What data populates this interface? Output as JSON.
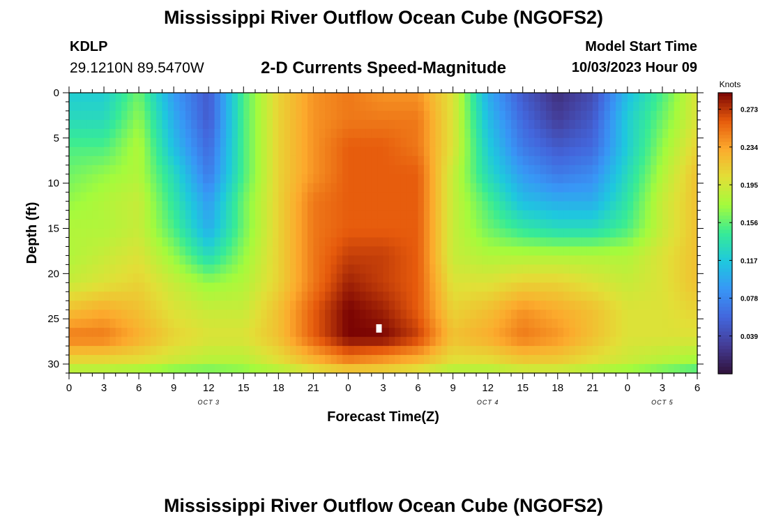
{
  "header": {
    "title": "Mississippi River Outflow Ocean Cube (NGOFS2)",
    "station": "KDLP",
    "coordinates": "29.1210N  89.5470W",
    "subtitle": "2-D Currents Speed-Magnitude",
    "model_start_label": "Model Start Time",
    "model_start_value": "10/03/2023 Hour 09"
  },
  "footer": {
    "title": "Mississippi River Outflow Ocean Cube (NGOFS2)"
  },
  "chart_data": {
    "type": "heatmap",
    "title": "2-D Currents Speed-Magnitude",
    "xlabel": "Forecast Time(Z)",
    "ylabel": "Depth (ft)",
    "x_range_hours": [
      0,
      54
    ],
    "y_range": [
      0,
      31
    ],
    "y_inverted": true,
    "x_tick_labels": [
      "0",
      "3",
      "6",
      "9",
      "12",
      "15",
      "18",
      "21",
      "0",
      "3",
      "6",
      "9",
      "12",
      "15",
      "18",
      "21",
      "0",
      "3",
      "6"
    ],
    "y_ticks": [
      0,
      5,
      10,
      15,
      20,
      25,
      30
    ],
    "date_labels": [
      {
        "label": "OCT 3",
        "hour": 12
      },
      {
        "label": "OCT 4",
        "hour": 36
      },
      {
        "label": "OCT 5",
        "hour": 51
      }
    ],
    "colorbar": {
      "units": "Knots",
      "ticks": [
        0.039,
        0.078,
        0.117,
        0.156,
        0.195,
        0.234,
        0.273
      ],
      "tick_labels": [
        "0.039",
        "0.078",
        "0.117",
        "0.156",
        "0.195",
        "0.234",
        "0.273"
      ],
      "range": [
        0.0,
        0.29
      ],
      "colormap": "turbo"
    },
    "grid": false,
    "speed_grid": {
      "hours": [
        0,
        3,
        6,
        9,
        12,
        15,
        18,
        21,
        24,
        27,
        30,
        33,
        36,
        39,
        42,
        45,
        48,
        51,
        54
      ],
      "depths": [
        0,
        3,
        6,
        9,
        12,
        15,
        18,
        21,
        24,
        27,
        30,
        31
      ],
      "values": [
        [
          0.12,
          0.12,
          0.16,
          0.09,
          0.05,
          0.15,
          0.21,
          0.24,
          0.25,
          0.24,
          0.24,
          0.2,
          0.1,
          0.05,
          0.02,
          0.04,
          0.11,
          0.15,
          0.2
        ],
        [
          0.13,
          0.13,
          0.17,
          0.1,
          0.05,
          0.15,
          0.21,
          0.24,
          0.25,
          0.25,
          0.25,
          0.2,
          0.11,
          0.06,
          0.03,
          0.05,
          0.12,
          0.16,
          0.2
        ],
        [
          0.15,
          0.15,
          0.18,
          0.11,
          0.06,
          0.15,
          0.21,
          0.24,
          0.26,
          0.26,
          0.25,
          0.2,
          0.12,
          0.07,
          0.05,
          0.06,
          0.12,
          0.17,
          0.21
        ],
        [
          0.16,
          0.17,
          0.18,
          0.13,
          0.07,
          0.15,
          0.21,
          0.24,
          0.26,
          0.26,
          0.26,
          0.19,
          0.13,
          0.09,
          0.07,
          0.08,
          0.13,
          0.18,
          0.22
        ],
        [
          0.17,
          0.18,
          0.19,
          0.14,
          0.09,
          0.16,
          0.21,
          0.25,
          0.26,
          0.26,
          0.26,
          0.19,
          0.15,
          0.11,
          0.1,
          0.1,
          0.14,
          0.19,
          0.22
        ],
        [
          0.18,
          0.18,
          0.19,
          0.15,
          0.1,
          0.16,
          0.21,
          0.25,
          0.26,
          0.26,
          0.26,
          0.19,
          0.16,
          0.14,
          0.13,
          0.13,
          0.15,
          0.19,
          0.22
        ],
        [
          0.18,
          0.19,
          0.2,
          0.17,
          0.13,
          0.17,
          0.21,
          0.25,
          0.27,
          0.27,
          0.26,
          0.19,
          0.18,
          0.18,
          0.18,
          0.18,
          0.18,
          0.2,
          0.22
        ],
        [
          0.19,
          0.2,
          0.21,
          0.19,
          0.17,
          0.18,
          0.21,
          0.25,
          0.28,
          0.27,
          0.26,
          0.2,
          0.2,
          0.21,
          0.21,
          0.2,
          0.19,
          0.2,
          0.22
        ],
        [
          0.22,
          0.23,
          0.22,
          0.2,
          0.19,
          0.19,
          0.22,
          0.26,
          0.29,
          0.28,
          0.26,
          0.21,
          0.22,
          0.24,
          0.23,
          0.22,
          0.2,
          0.2,
          0.21
        ],
        [
          0.25,
          0.25,
          0.23,
          0.21,
          0.2,
          0.2,
          0.22,
          0.26,
          0.29,
          0.29,
          0.27,
          0.22,
          0.23,
          0.25,
          0.24,
          0.22,
          0.2,
          0.2,
          0.2
        ],
        [
          0.2,
          0.2,
          0.2,
          0.19,
          0.18,
          0.18,
          0.2,
          0.22,
          0.24,
          0.23,
          0.22,
          0.2,
          0.2,
          0.21,
          0.21,
          0.2,
          0.19,
          0.18,
          0.17
        ],
        [
          0.17,
          0.17,
          0.16,
          0.15,
          0.15,
          0.16,
          0.17,
          0.19,
          0.2,
          0.2,
          0.19,
          0.17,
          0.17,
          0.18,
          0.18,
          0.17,
          0.16,
          0.15,
          0.14
        ]
      ]
    }
  }
}
